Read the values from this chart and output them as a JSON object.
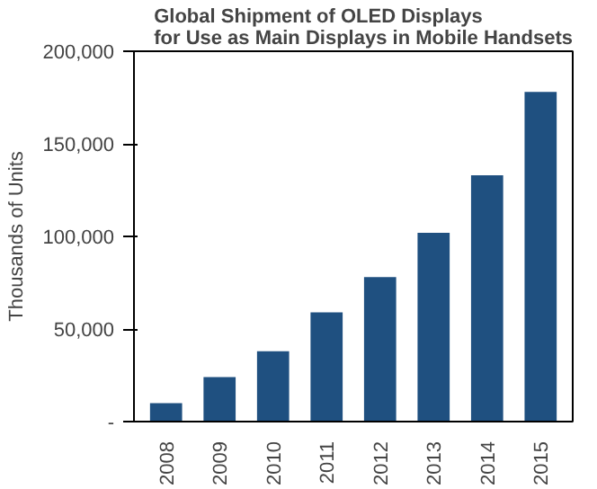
{
  "chart_data": {
    "type": "bar",
    "title": "Global Shipment of OLED Displays\nfor Use as Main Displays in Mobile Handsets",
    "ylabel": "Thousands of Units",
    "categories": [
      "2008",
      "2009",
      "2010",
      "2011",
      "2012",
      "2013",
      "2014",
      "2015"
    ],
    "values": [
      10000,
      24000,
      38000,
      59000,
      78000,
      102000,
      133000,
      178000
    ],
    "color": "#1f5080",
    "ylim": [
      0,
      200000
    ],
    "yticks": [
      {
        "value": 0,
        "label": "-"
      },
      {
        "value": 50000,
        "label": "50,000"
      },
      {
        "value": 100000,
        "label": "100,000"
      },
      {
        "value": 150000,
        "label": "150,000"
      },
      {
        "value": 200000,
        "label": "200,000"
      }
    ],
    "grid": false
  }
}
